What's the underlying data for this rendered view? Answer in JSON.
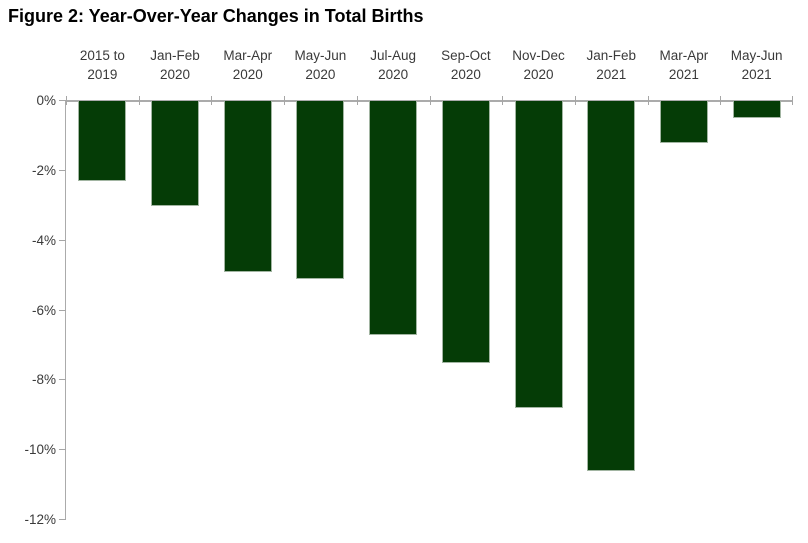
{
  "title": "Figure 2: Year-Over-Year Changes in Total Births",
  "chart_data": {
    "type": "bar",
    "title": "Figure 2: Year-Over-Year Changes in Total Births",
    "categories": [
      "2015 to 2019",
      "Jan-Feb 2020",
      "Mar-Apr 2020",
      "May-Jun 2020",
      "Jul-Aug 2020",
      "Sep-Oct 2020",
      "Nov-Dec 2020",
      "Jan-Feb 2021",
      "Mar-Apr 2021",
      "May-Jun 2021"
    ],
    "category_label_lines": [
      [
        "2015 to",
        "2019"
      ],
      [
        "Jan-Feb",
        "2020"
      ],
      [
        "Mar-Apr",
        "2020"
      ],
      [
        "May-Jun",
        "2020"
      ],
      [
        "Jul-Aug",
        "2020"
      ],
      [
        "Sep-Oct",
        "2020"
      ],
      [
        "Nov-Dec",
        "2020"
      ],
      [
        "Jan-Feb",
        "2021"
      ],
      [
        "Mar-Apr",
        "2021"
      ],
      [
        "May-Jun",
        "2021"
      ]
    ],
    "values": [
      -2.3,
      -3.0,
      -4.9,
      -5.1,
      -6.7,
      -7.5,
      -8.8,
      -10.6,
      -1.2,
      -0.5
    ],
    "unit": "%",
    "xlabel": "",
    "ylabel": "",
    "ylim": [
      -12,
      0
    ],
    "ytick_step": 2,
    "ytick_labels": [
      "0%",
      "-2%",
      "-4%",
      "-6%",
      "-8%",
      "-10%",
      "-12%"
    ],
    "grid": false,
    "legend_position": "none",
    "bar_color": "#053c06",
    "bar_border_color": "#a2b5a2",
    "axis_color": "#ababab",
    "label_color": "#3a3a3a",
    "category_axis_position": "top"
  }
}
